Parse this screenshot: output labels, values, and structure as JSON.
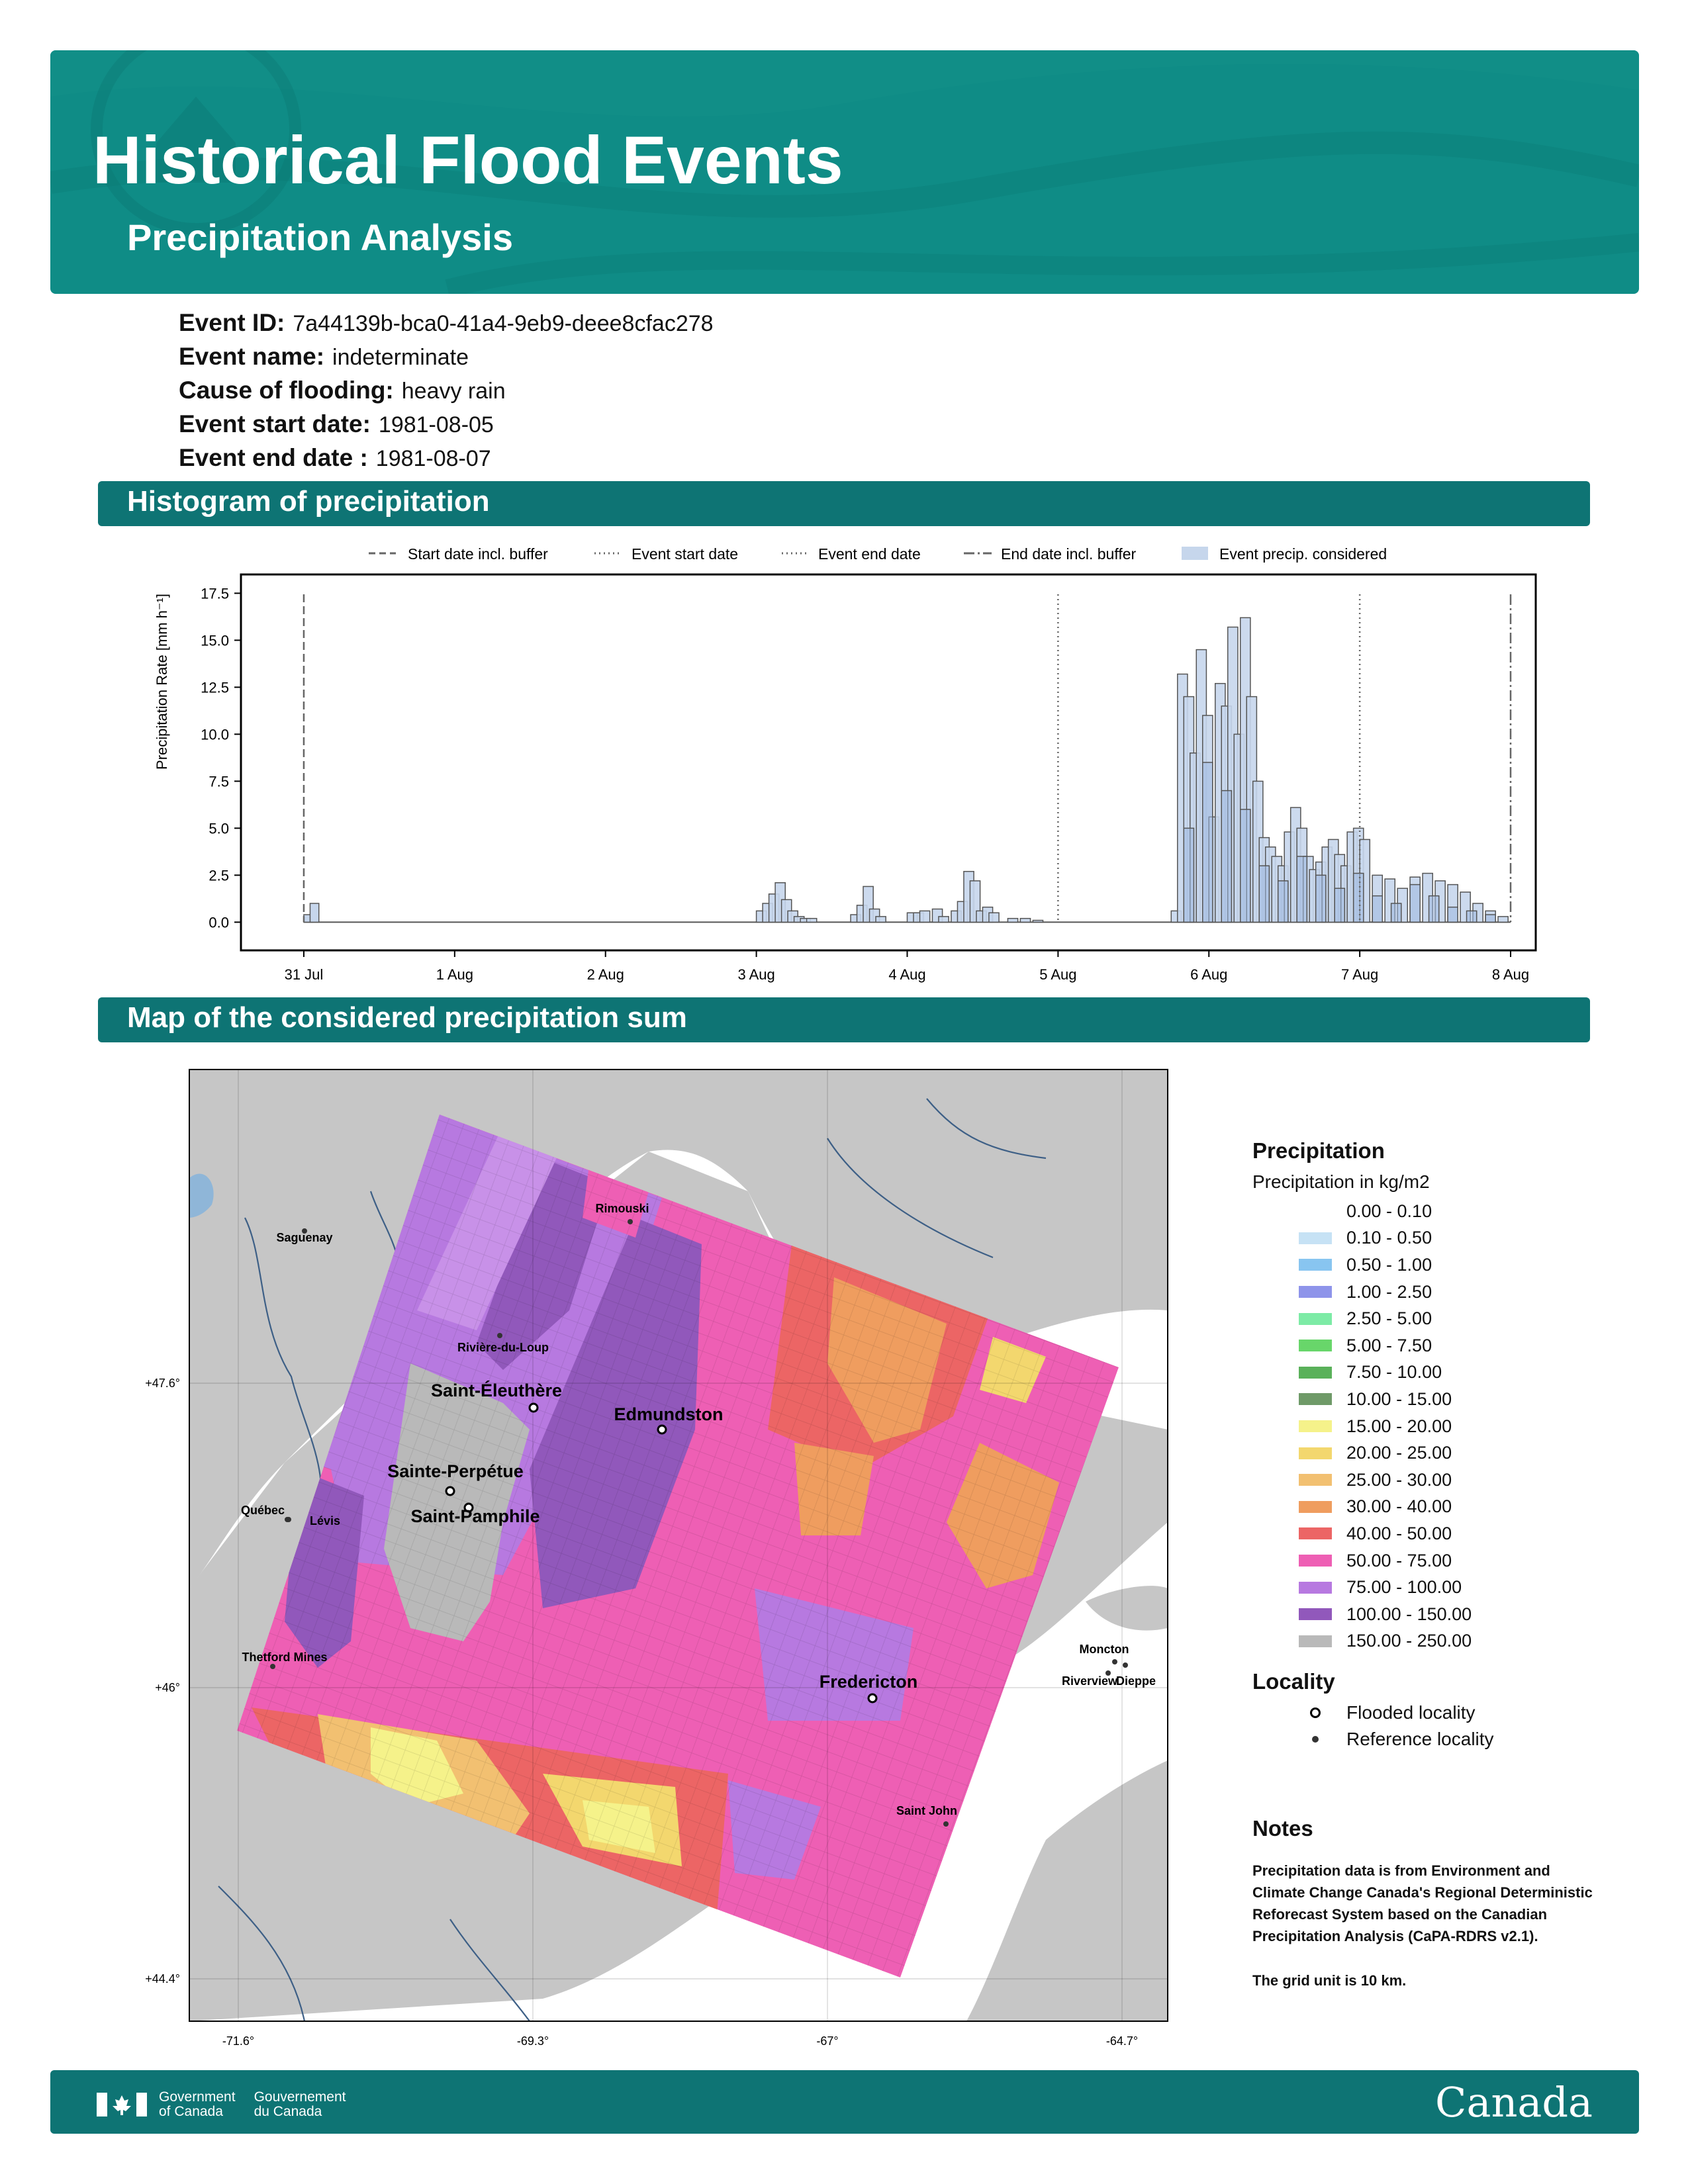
{
  "header": {
    "title": "Historical Flood Events",
    "subtitle": "Precipitation Analysis"
  },
  "event": [
    {
      "key": "Event ID:",
      "value": "7a44139b-bca0-41a4-9eb9-deee8cfac278"
    },
    {
      "key": "Event name:",
      "value": "indeterminate"
    },
    {
      "key": "Cause of flooding:",
      "value": "heavy rain"
    },
    {
      "key": "Event start date:",
      "value": "1981-08-05"
    },
    {
      "key": "Event end date :",
      "value": "1981-08-07"
    }
  ],
  "sections": {
    "histogram": "Histogram of precipitation",
    "map": "Map of the considered precipitation sum"
  },
  "histogram_legend": [
    "Start date incl. buffer",
    "Event start date",
    "Event end date",
    "End date incl. buffer",
    "Event precip. considered"
  ],
  "chart_data": {
    "type": "bar",
    "ylabel": "Precipitation Rate [mm h⁻¹]",
    "ylim": [
      -1.5,
      18.5
    ],
    "yticks": [
      "0.0",
      "2.5",
      "5.0",
      "7.5",
      "10.0",
      "12.5",
      "15.0",
      "17.5"
    ],
    "x_tick_labels": [
      "31 Jul",
      "1 Aug",
      "2 Aug",
      "3 Aug",
      "4 Aug",
      "5 Aug",
      "6 Aug",
      "7 Aug",
      "8 Aug"
    ],
    "xlim": [
      "1981-07-30T14:00",
      "1981-08-08T04:00"
    ],
    "markers": {
      "start_incl_buffer": "1981-07-31T00:00",
      "event_start": "1981-08-05T00:00",
      "event_end": "1981-08-07T00:00",
      "end_incl_buffer": "1981-08-08T00:00"
    },
    "series": [
      {
        "x": [
          "1981-08-03T00",
          "1981-08-03T01",
          "1981-08-03T02",
          "1981-08-03T03",
          "1981-08-03T04",
          "1981-08-03T05",
          "1981-08-03T06",
          "1981-08-03T07",
          "1981-08-03T08",
          "1981-08-03T15",
          "1981-08-03T16",
          "1981-08-03T17",
          "1981-08-03T18",
          "1981-08-03T19",
          "1981-08-04T00",
          "1981-08-04T01",
          "1981-08-04T02",
          "1981-08-04T04",
          "1981-08-04T05",
          "1981-08-04T07",
          "1981-08-04T08",
          "1981-08-04T09",
          "1981-08-04T10",
          "1981-08-04T11",
          "1981-08-04T12",
          "1981-08-04T13",
          "1981-08-04T16",
          "1981-08-04T18",
          "1981-08-04T20"
        ],
        "values": [
          0.6,
          1.0,
          1.5,
          2.1,
          1.2,
          0.6,
          0.3,
          0.2,
          0.2,
          0.4,
          0.9,
          1.9,
          0.7,
          0.3,
          0.5,
          0.5,
          0.6,
          0.7,
          0.3,
          0.6,
          1.1,
          2.7,
          2.2,
          0.6,
          0.8,
          0.5,
          0.2,
          0.2,
          0.1
        ]
      },
      {
        "x": [
          "1981-08-05T18",
          "1981-08-05T19",
          "1981-08-05T20",
          "1981-08-05T21",
          "1981-08-05T22",
          "1981-08-05T23",
          "1981-08-06T00",
          "1981-08-06T01",
          "1981-08-06T02",
          "1981-08-06T03",
          "1981-08-06T04",
          "1981-08-06T05",
          "1981-08-06T06",
          "1981-08-06T07",
          "1981-08-06T08",
          "1981-08-06T09",
          "1981-08-06T10",
          "1981-08-06T11",
          "1981-08-06T12",
          "1981-08-06T13",
          "1981-08-06T14",
          "1981-08-06T15",
          "1981-08-06T16",
          "1981-08-06T17",
          "1981-08-06T18",
          "1981-08-06T19",
          "1981-08-06T20",
          "1981-08-06T21",
          "1981-08-06T22",
          "1981-08-06T23",
          "1981-08-07T00",
          "1981-08-07T02",
          "1981-08-07T04",
          "1981-08-07T06",
          "1981-08-07T08",
          "1981-08-07T10",
          "1981-08-07T12",
          "1981-08-07T14",
          "1981-08-07T16",
          "1981-08-07T18",
          "1981-08-07T20",
          "1981-08-07T22"
        ],
        "values": [
          0.6,
          13.2,
          12.0,
          9.0,
          14.5,
          11.0,
          5.6,
          12.7,
          11.5,
          15.7,
          10.0,
          16.2,
          12.0,
          7.5,
          4.5,
          4.0,
          3.5,
          3.0,
          4.8,
          6.1,
          5.0,
          3.5,
          2.8,
          3.2,
          4.0,
          4.4,
          3.6,
          3.0,
          4.8,
          5.0,
          4.4,
          2.5,
          2.3,
          1.8,
          2.4,
          2.6,
          2.2,
          2.0,
          1.6,
          1.0,
          0.6,
          0.3
        ]
      },
      {
        "x": [
          "1981-08-05T20",
          "1981-08-05T23",
          "1981-08-06T02",
          "1981-08-06T05",
          "1981-08-06T08",
          "1981-08-06T11",
          "1981-08-06T14",
          "1981-08-06T17",
          "1981-08-06T20",
          "1981-08-06T23",
          "1981-08-07T02",
          "1981-08-07T05",
          "1981-08-07T08",
          "1981-08-07T11",
          "1981-08-07T14",
          "1981-08-07T17",
          "1981-08-07T20"
        ],
        "values": [
          5.0,
          8.5,
          7.0,
          6.0,
          3.0,
          2.2,
          3.5,
          2.5,
          1.8,
          2.6,
          1.4,
          1.0,
          2.0,
          1.4,
          0.8,
          0.6,
          0.4
        ]
      }
    ]
  },
  "map": {
    "lon_labels": [
      "-71.6°",
      "-69.3°",
      "-67°",
      "-64.7°"
    ],
    "lat_labels": [
      "+47.6°",
      "+46°",
      "+44.4°"
    ],
    "flooded_localities": [
      "Saint-Éleuthère",
      "Edmundston",
      "Sainte-Perpétue",
      "Saint-Pamphile",
      "Fredericton"
    ],
    "reference_localities": [
      "Rimouski",
      "Saguenay",
      "Rivière-du-Loup",
      "Québec",
      "Lévis",
      "Thetford Mines",
      "Moncton",
      "Riverview",
      "Dieppe",
      "Saint John"
    ]
  },
  "legend": {
    "title": "Precipitation",
    "subtitle": "Precipitation in kg/m2",
    "classes": [
      {
        "label": "0.00 - 0.10",
        "color": "#ffffff"
      },
      {
        "label": "0.10 - 0.50",
        "color": "#c6e2f5"
      },
      {
        "label": "0.50 - 1.00",
        "color": "#88c5f0"
      },
      {
        "label": "1.00 - 2.50",
        "color": "#8e94ea"
      },
      {
        "label": "2.50 - 5.00",
        "color": "#7deba6"
      },
      {
        "label": "5.00 - 7.50",
        "color": "#68d66a"
      },
      {
        "label": "7.50 - 10.00",
        "color": "#5ab15a"
      },
      {
        "label": "10.00 - 15.00",
        "color": "#6f9a68"
      },
      {
        "label": "15.00 - 20.00",
        "color": "#f5f28a"
      },
      {
        "label": "20.00 - 25.00",
        "color": "#f3d76e"
      },
      {
        "label": "25.00 - 30.00",
        "color": "#f2c071"
      },
      {
        "label": "30.00 - 40.00",
        "color": "#ef9d5f"
      },
      {
        "label": "40.00 - 50.00",
        "color": "#ec6565"
      },
      {
        "label": "50.00 - 75.00",
        "color": "#ee5fb4"
      },
      {
        "label": "75.00 - 100.00",
        "color": "#b779e0"
      },
      {
        "label": "100.00 - 150.00",
        "color": "#9158bb"
      },
      {
        "label": "150.00 - 250.00",
        "color": "#b9b9b9"
      }
    ],
    "locality_title": "Locality",
    "flooded_label": "Flooded locality",
    "reference_label": "Reference locality"
  },
  "notes": {
    "title": "Notes",
    "text1": "Precipitation data is from Environment and Climate Change Canada's Regional Deterministic Reforecast System based on the Canadian Precipitation Analysis (CaPA-RDRS v2.1).",
    "text2": "The grid unit is 10 km."
  },
  "footer": {
    "gov_en_1": "Government",
    "gov_en_2": "of Canada",
    "gov_fr_1": "Gouvernement",
    "gov_fr_2": "du Canada",
    "wordmark": "Canada"
  }
}
